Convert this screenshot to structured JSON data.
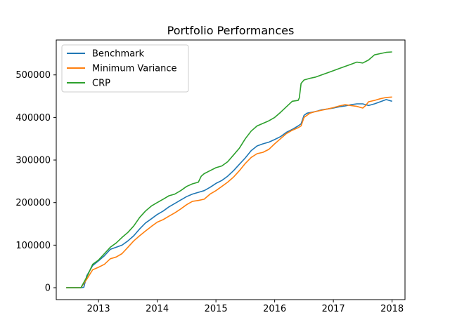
{
  "chart_data": {
    "type": "line",
    "title": "Portfolio Performances",
    "xlabel": "",
    "ylabel": "",
    "xlim": [
      2012.28,
      2018.22
    ],
    "ylim": [
      -28000,
      582000
    ],
    "x_ticks": [
      2013,
      2014,
      2015,
      2016,
      2017,
      2018
    ],
    "x_tick_labels": [
      "2013",
      "2014",
      "2015",
      "2016",
      "2017",
      "2018"
    ],
    "y_ticks": [
      0,
      100000,
      200000,
      300000,
      400000,
      500000
    ],
    "y_tick_labels": [
      "0",
      "100000",
      "200000",
      "300000",
      "400000",
      "500000"
    ],
    "grid": false,
    "legend_position": "top-left",
    "series": [
      {
        "name": "Benchmark",
        "color": "#1f77b4",
        "points": [
          [
            2012.45,
            0
          ],
          [
            2012.7,
            0
          ],
          [
            2012.75,
            1000
          ],
          [
            2012.8,
            28000
          ],
          [
            2012.9,
            52000
          ],
          [
            2013.0,
            63000
          ],
          [
            2013.1,
            75000
          ],
          [
            2013.2,
            90000
          ],
          [
            2013.3,
            95000
          ],
          [
            2013.4,
            100000
          ],
          [
            2013.5,
            110000
          ],
          [
            2013.6,
            122000
          ],
          [
            2013.7,
            138000
          ],
          [
            2013.8,
            152000
          ],
          [
            2013.9,
            162000
          ],
          [
            2014.0,
            172000
          ],
          [
            2014.1,
            180000
          ],
          [
            2014.2,
            190000
          ],
          [
            2014.3,
            198000
          ],
          [
            2014.4,
            206000
          ],
          [
            2014.5,
            214000
          ],
          [
            2014.6,
            220000
          ],
          [
            2014.7,
            224000
          ],
          [
            2014.8,
            228000
          ],
          [
            2014.9,
            236000
          ],
          [
            2015.0,
            245000
          ],
          [
            2015.1,
            252000
          ],
          [
            2015.2,
            262000
          ],
          [
            2015.3,
            275000
          ],
          [
            2015.4,
            290000
          ],
          [
            2015.5,
            305000
          ],
          [
            2015.6,
            322000
          ],
          [
            2015.7,
            333000
          ],
          [
            2015.8,
            338000
          ],
          [
            2015.9,
            342000
          ],
          [
            2016.0,
            348000
          ],
          [
            2016.1,
            355000
          ],
          [
            2016.2,
            365000
          ],
          [
            2016.3,
            372000
          ],
          [
            2016.4,
            380000
          ],
          [
            2016.45,
            385000
          ],
          [
            2016.5,
            405000
          ],
          [
            2016.55,
            410000
          ],
          [
            2016.7,
            414000
          ],
          [
            2016.8,
            418000
          ],
          [
            2016.9,
            420000
          ],
          [
            2017.0,
            422000
          ],
          [
            2017.1,
            425000
          ],
          [
            2017.2,
            427000
          ],
          [
            2017.3,
            430000
          ],
          [
            2017.4,
            432000
          ],
          [
            2017.5,
            432000
          ],
          [
            2017.6,
            428000
          ],
          [
            2017.7,
            432000
          ],
          [
            2017.8,
            437000
          ],
          [
            2017.9,
            442000
          ],
          [
            2018.0,
            438000
          ]
        ]
      },
      {
        "name": "Minimum Variance",
        "color": "#ff7f0e",
        "points": [
          [
            2012.45,
            0
          ],
          [
            2012.7,
            0
          ],
          [
            2012.8,
            20000
          ],
          [
            2012.9,
            42000
          ],
          [
            2013.0,
            48000
          ],
          [
            2013.1,
            55000
          ],
          [
            2013.2,
            68000
          ],
          [
            2013.3,
            72000
          ],
          [
            2013.4,
            80000
          ],
          [
            2013.5,
            95000
          ],
          [
            2013.6,
            110000
          ],
          [
            2013.7,
            122000
          ],
          [
            2013.8,
            133000
          ],
          [
            2013.9,
            144000
          ],
          [
            2014.0,
            154000
          ],
          [
            2014.1,
            160000
          ],
          [
            2014.2,
            168000
          ],
          [
            2014.3,
            176000
          ],
          [
            2014.4,
            185000
          ],
          [
            2014.5,
            195000
          ],
          [
            2014.6,
            203000
          ],
          [
            2014.7,
            205000
          ],
          [
            2014.8,
            208000
          ],
          [
            2014.9,
            220000
          ],
          [
            2015.0,
            228000
          ],
          [
            2015.1,
            238000
          ],
          [
            2015.2,
            248000
          ],
          [
            2015.3,
            260000
          ],
          [
            2015.4,
            275000
          ],
          [
            2015.5,
            292000
          ],
          [
            2015.6,
            306000
          ],
          [
            2015.7,
            315000
          ],
          [
            2015.8,
            318000
          ],
          [
            2015.9,
            325000
          ],
          [
            2016.0,
            338000
          ],
          [
            2016.1,
            350000
          ],
          [
            2016.2,
            362000
          ],
          [
            2016.3,
            370000
          ],
          [
            2016.4,
            376000
          ],
          [
            2016.45,
            380000
          ],
          [
            2016.5,
            400000
          ],
          [
            2016.6,
            410000
          ],
          [
            2016.7,
            414000
          ],
          [
            2016.8,
            417000
          ],
          [
            2016.9,
            420000
          ],
          [
            2017.0,
            423000
          ],
          [
            2017.1,
            427000
          ],
          [
            2017.2,
            430000
          ],
          [
            2017.3,
            428000
          ],
          [
            2017.4,
            426000
          ],
          [
            2017.5,
            422000
          ],
          [
            2017.55,
            428000
          ],
          [
            2017.6,
            437000
          ],
          [
            2017.7,
            440000
          ],
          [
            2017.8,
            444000
          ],
          [
            2017.9,
            447000
          ],
          [
            2018.0,
            448000
          ]
        ]
      },
      {
        "name": "CRP",
        "color": "#2ca02c",
        "points": [
          [
            2012.45,
            0
          ],
          [
            2012.7,
            0
          ],
          [
            2012.8,
            25000
          ],
          [
            2012.9,
            55000
          ],
          [
            2013.0,
            65000
          ],
          [
            2013.1,
            80000
          ],
          [
            2013.2,
            95000
          ],
          [
            2013.3,
            105000
          ],
          [
            2013.4,
            118000
          ],
          [
            2013.5,
            130000
          ],
          [
            2013.6,
            145000
          ],
          [
            2013.7,
            165000
          ],
          [
            2013.8,
            180000
          ],
          [
            2013.9,
            192000
          ],
          [
            2014.0,
            200000
          ],
          [
            2014.1,
            208000
          ],
          [
            2014.2,
            216000
          ],
          [
            2014.3,
            220000
          ],
          [
            2014.4,
            228000
          ],
          [
            2014.5,
            238000
          ],
          [
            2014.6,
            244000
          ],
          [
            2014.7,
            248000
          ],
          [
            2014.75,
            262000
          ],
          [
            2014.8,
            268000
          ],
          [
            2014.9,
            275000
          ],
          [
            2015.0,
            282000
          ],
          [
            2015.1,
            286000
          ],
          [
            2015.2,
            296000
          ],
          [
            2015.3,
            312000
          ],
          [
            2015.4,
            328000
          ],
          [
            2015.5,
            350000
          ],
          [
            2015.6,
            368000
          ],
          [
            2015.7,
            380000
          ],
          [
            2015.8,
            386000
          ],
          [
            2015.9,
            392000
          ],
          [
            2016.0,
            400000
          ],
          [
            2016.1,
            412000
          ],
          [
            2016.2,
            425000
          ],
          [
            2016.3,
            438000
          ],
          [
            2016.4,
            440000
          ],
          [
            2016.42,
            446000
          ],
          [
            2016.45,
            480000
          ],
          [
            2016.5,
            488000
          ],
          [
            2016.6,
            492000
          ],
          [
            2016.7,
            495000
          ],
          [
            2016.8,
            500000
          ],
          [
            2016.9,
            505000
          ],
          [
            2017.0,
            510000
          ],
          [
            2017.1,
            515000
          ],
          [
            2017.2,
            520000
          ],
          [
            2017.3,
            525000
          ],
          [
            2017.4,
            530000
          ],
          [
            2017.5,
            528000
          ],
          [
            2017.6,
            535000
          ],
          [
            2017.7,
            547000
          ],
          [
            2017.8,
            550000
          ],
          [
            2017.9,
            553000
          ],
          [
            2018.0,
            554000
          ]
        ]
      }
    ]
  }
}
